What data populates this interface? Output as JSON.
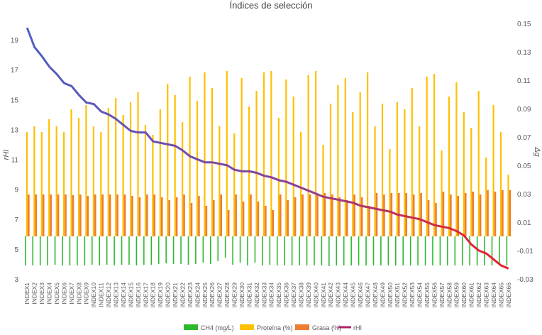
{
  "chart_data": {
    "type": "bar",
    "title": "Índices de selección",
    "ylabel_left": "rHI",
    "ylabel_right": "Δg",
    "y_left_ticks": [
      "3",
      "5",
      "7",
      "9",
      "11",
      "13",
      "15",
      "17",
      "19"
    ],
    "y_right_ticks": [
      "-0.03",
      "-0.01",
      "0.01",
      "0.03",
      "0.05",
      "0.07",
      "0.09",
      "0.11",
      "0.13",
      "0.15"
    ],
    "y_left_range": [
      3,
      21
    ],
    "y_right_range": [
      -0.03,
      0.16
    ],
    "categories": [
      "INDEX1",
      "INDEX2",
      "INDEX3",
      "INDEX4",
      "INDEX5",
      "INDEX6",
      "INDEX7",
      "INDEX8",
      "INDEX9",
      "INDEX10",
      "INDEX11",
      "INDEX12",
      "INDEX13",
      "INDEX14",
      "INDEX15",
      "INDEX16",
      "INDEX17",
      "INDEX18",
      "INDEX19",
      "INDEX20",
      "INDEX21",
      "INDEX22",
      "INDEX23",
      "INDEX24",
      "INDEX25",
      "INDEX26",
      "INDEX27",
      "INDEX28",
      "INDEX29",
      "INDEX30",
      "INDEX31",
      "INDEX32",
      "INDEX33",
      "INDEX34",
      "INDEX35",
      "INDEX36",
      "INDEX37",
      "INDEX38",
      "INDEX39",
      "INDEX40",
      "INDEX41",
      "INDEX42",
      "INDEX43",
      "INDEX44",
      "INDEX45",
      "INDEX46",
      "INDEX47",
      "INDEX48",
      "INDEX49",
      "INDEX50",
      "INDEX51",
      "INDEX52",
      "INDEX53",
      "INDEX54",
      "INDEX55",
      "INDEX56",
      "INDEX57",
      "INDEX58",
      "INDEX59",
      "INDEX60",
      "INDEX61",
      "INDEX62",
      "INDEX63",
      "INDEX64",
      "INDEX65",
      "INDEX66"
    ],
    "series": [
      {
        "name": "CH4 (mg/L)",
        "axis": "right",
        "color": "#2EB82E",
        "values": [
          -0.0205,
          -0.0205,
          -0.0205,
          -0.0205,
          -0.02,
          -0.0205,
          -0.0205,
          -0.0205,
          -0.0205,
          -0.02,
          -0.0205,
          -0.02,
          -0.0205,
          -0.02,
          -0.02,
          -0.0205,
          -0.02,
          -0.02,
          -0.0195,
          -0.019,
          -0.0195,
          -0.0195,
          -0.02,
          -0.0195,
          -0.0185,
          -0.0195,
          -0.0175,
          -0.015,
          -0.02,
          -0.0185,
          -0.0205,
          -0.0185,
          -0.0205,
          -0.02,
          -0.0205,
          -0.0205,
          -0.0205,
          -0.0205,
          -0.0205,
          -0.0205,
          -0.0205,
          -0.021,
          -0.0205,
          -0.0205,
          -0.0205,
          -0.0205,
          -0.0205,
          -0.0205,
          -0.0205,
          -0.0205,
          -0.0205,
          -0.0205,
          -0.0205,
          -0.0205,
          -0.0205,
          -0.0205,
          -0.0205,
          -0.0205,
          -0.0205,
          -0.0205,
          -0.0205,
          -0.0205,
          -0.0205,
          -0.0205,
          -0.0205,
          -0.0205
        ]
      },
      {
        "name": "Proteína (%)",
        "axis": "right",
        "color": "#FFC000",
        "values": [
          0.0735,
          0.0775,
          0.0735,
          0.0825,
          0.0775,
          0.0735,
          0.0895,
          0.0835,
          0.0925,
          0.0775,
          0.0735,
          0.0905,
          0.0975,
          0.0855,
          0.0945,
          0.1015,
          0.0785,
          0.0715,
          0.0895,
          0.1075,
          0.0995,
          0.0805,
          0.1125,
          0.0955,
          0.1155,
          0.1045,
          0.0775,
          0.1165,
          0.0725,
          0.1115,
          0.0915,
          0.1025,
          0.1155,
          0.1165,
          0.0835,
          0.1105,
          0.0985,
          0.0735,
          0.1135,
          0.1165,
          0.0645,
          0.0935,
          0.1065,
          0.1115,
          0.0875,
          0.1015,
          0.1155,
          0.0775,
          0.0935,
          0.0615,
          0.0945,
          0.0895,
          0.1045,
          0.0775,
          0.1125,
          0.1145,
          0.0605,
          0.0985,
          0.1085,
          0.0875,
          0.0765,
          0.1025,
          0.0555,
          0.0925,
          0.0735,
          0.0435
        ]
      },
      {
        "name": "Grasa (%)",
        "axis": "right",
        "color": "#ED7D31",
        "values": [
          0.0295,
          0.0295,
          0.0295,
          0.0295,
          0.0295,
          0.0295,
          0.029,
          0.0295,
          0.0285,
          0.0295,
          0.0295,
          0.0295,
          0.0295,
          0.0295,
          0.0285,
          0.0275,
          0.0295,
          0.0295,
          0.0275,
          0.0255,
          0.0275,
          0.0295,
          0.0235,
          0.0285,
          0.0215,
          0.0255,
          0.0295,
          0.0185,
          0.0295,
          0.0245,
          0.0295,
          0.0245,
          0.0215,
          0.0185,
          0.0295,
          0.0255,
          0.0275,
          0.0295,
          0.0295,
          0.0295,
          0.0305,
          0.0295,
          0.0275,
          0.0255,
          0.0295,
          0.0275,
          0.0215,
          0.0305,
          0.0295,
          0.0305,
          0.0305,
          0.0305,
          0.0295,
          0.0305,
          0.0255,
          0.0235,
          0.0315,
          0.0295,
          0.0285,
          0.0305,
          0.0315,
          0.0295,
          0.0325,
          0.0315,
          0.0325,
          0.0325
        ]
      },
      {
        "name": "rHI",
        "axis": "left",
        "color_top": "#4F5FC2",
        "color_bottom": "#E8202A",
        "values": [
          19.8,
          18.5,
          17.9,
          17.2,
          16.7,
          16.1,
          15.9,
          15.3,
          14.8,
          14.7,
          14.2,
          14.0,
          13.7,
          13.3,
          12.9,
          12.8,
          12.8,
          12.2,
          12.1,
          12.0,
          11.9,
          11.6,
          11.2,
          11.0,
          10.8,
          10.8,
          10.7,
          10.6,
          10.3,
          10.2,
          10.2,
          10.1,
          9.9,
          9.8,
          9.6,
          9.5,
          9.3,
          9.1,
          8.9,
          8.7,
          8.5,
          8.4,
          8.3,
          8.2,
          8.1,
          7.9,
          7.8,
          7.7,
          7.6,
          7.5,
          7.3,
          7.2,
          7.1,
          7.0,
          6.8,
          6.6,
          6.5,
          6.4,
          6.2,
          5.9,
          5.3,
          4.9,
          4.7,
          4.3,
          3.9,
          3.7
        ]
      }
    ],
    "legend_position": "bottom",
    "grid": false
  }
}
